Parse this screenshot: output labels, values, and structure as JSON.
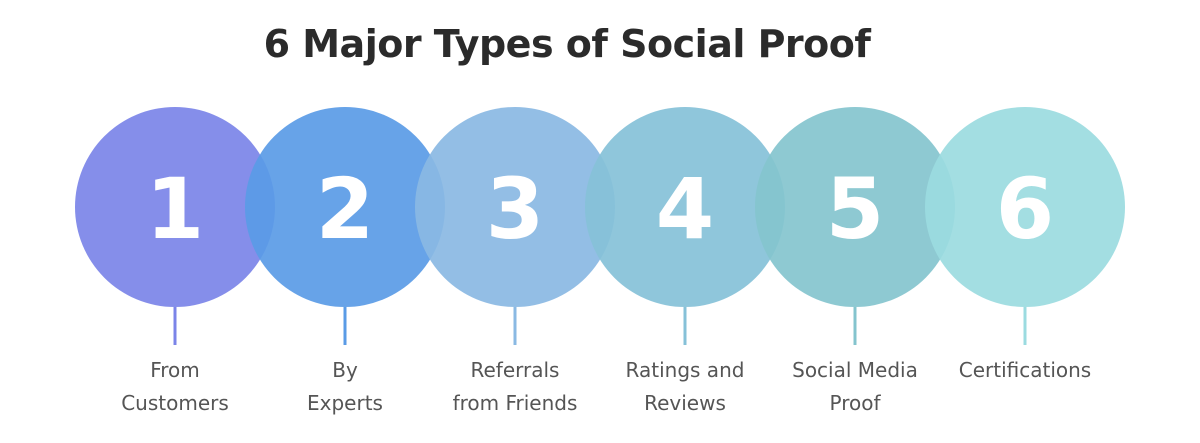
{
  "title": "6 Major Types of Social Proof",
  "items": [
    {
      "number": "1",
      "label_line1": "From",
      "label_line2": "Customers",
      "color": "#7b84e8"
    },
    {
      "number": "2",
      "label_line1": "By",
      "label_line2": "Experts",
      "color": "#5a9be6"
    },
    {
      "number": "3",
      "label_line1": "Referrals",
      "label_line2": "from Friends",
      "color": "#8ab9e3"
    },
    {
      "number": "4",
      "label_line1": "Ratings and",
      "label_line2": "Reviews",
      "color": "#86c1d8"
    },
    {
      "number": "5",
      "label_line1": "Social Media",
      "label_line2": "Proof",
      "color": "#84c4ce"
    },
    {
      "number": "6",
      "label_line1": "Certifications",
      "label_line2": "",
      "color": "#9bdbe0"
    }
  ]
}
